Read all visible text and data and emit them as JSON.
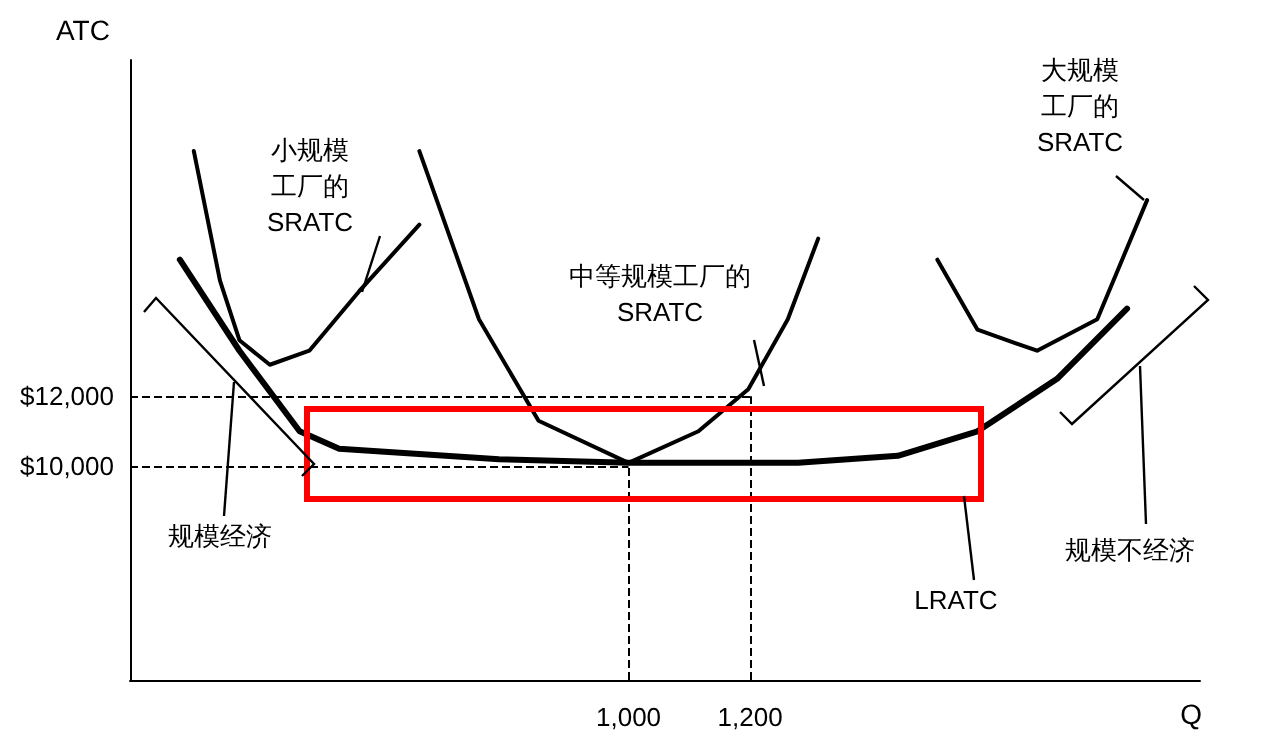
{
  "chart_data": {
    "type": "line",
    "xlabel": "Q",
    "ylabel": "ATC",
    "xlim": [
      180,
      1940
    ],
    "ylim": [
      3900,
      21600
    ],
    "xticks": [
      {
        "value": 1000,
        "label": "1,000"
      },
      {
        "value": 1200,
        "label": "1,200"
      }
    ],
    "yticks": [
      {
        "value": 10000,
        "label": "$10,000"
      },
      {
        "value": 12000,
        "label": "$12,000"
      }
    ],
    "series": [
      {
        "color": "#000000",
        "x": [
          285,
          328,
          360,
          410,
          475,
          557,
          656
        ],
        "values": [
          19000,
          15300,
          13600,
          12900,
          13300,
          15000,
          16900
        ]
      },
      {
        "color": "#000000",
        "x": [
          656,
          754,
          852,
          1000,
          1115,
          1197,
          1262,
          1312
        ],
        "values": [
          19000,
          14200,
          11300,
          10100,
          11000,
          12200,
          14200,
          16500
        ]
      },
      {
        "color": "#000000",
        "x": [
          1508,
          1574,
          1672,
          1771,
          1853
        ],
        "values": [
          15900,
          13900,
          13300,
          14200,
          17600
        ]
      },
      {
        "color": "#000000",
        "x": [
          262,
          360,
          459,
          524,
          787,
          1000,
          1279,
          1443,
          1574,
          1705,
          1820
        ],
        "values": [
          15900,
          13300,
          11000,
          10500,
          10200,
          10100,
          10100,
          10300,
          11000,
          12500,
          14500
        ]
      }
    ],
    "ref_lines": [
      {
        "axis": "y",
        "value": 10000,
        "line_style": "dashed"
      },
      {
        "axis": "y",
        "value": 12000,
        "line_style": "dashed"
      },
      {
        "axis": "x",
        "value": 1000,
        "line_style": "dashed"
      },
      {
        "axis": "x",
        "value": 1200,
        "line_style": "dashed"
      }
    ],
    "annotations": [
      "小规模",
      "工厂的",
      "SRATC",
      "中等规模工厂的",
      "SRATC",
      "大规模",
      "工厂的",
      "SRATC",
      "规模经济",
      "规模不经济",
      "LRATC"
    ],
    "grid": false,
    "marker": "none",
    "line_style": "solid"
  }
}
